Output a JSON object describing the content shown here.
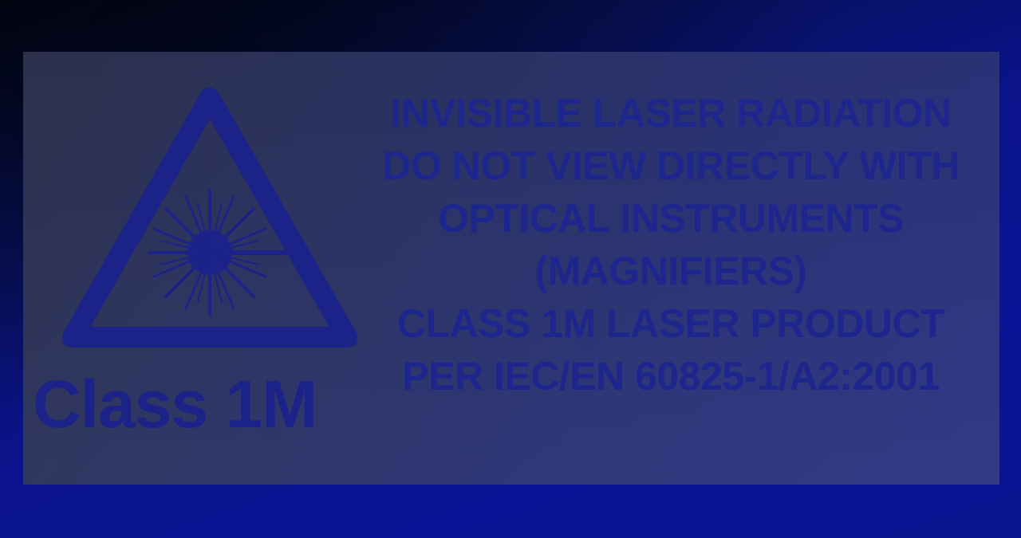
{
  "label": {
    "class_label": "Class 1M",
    "warning_lines": [
      "INVISIBLE LASER RADIATION",
      "DO NOT VIEW DIRECTLY WITH",
      "OPTICAL INSTRUMENTS",
      "(MAGNIFIERS)",
      "CLASS 1M LASER PRODUCT",
      "PER IEC/EN 60825-1/A2:2001"
    ],
    "symbol_icon": "laser-hazard-icon"
  },
  "colors": {
    "background": "#0a138a",
    "panel": "#2c3463",
    "ink": "#1b2388"
  }
}
